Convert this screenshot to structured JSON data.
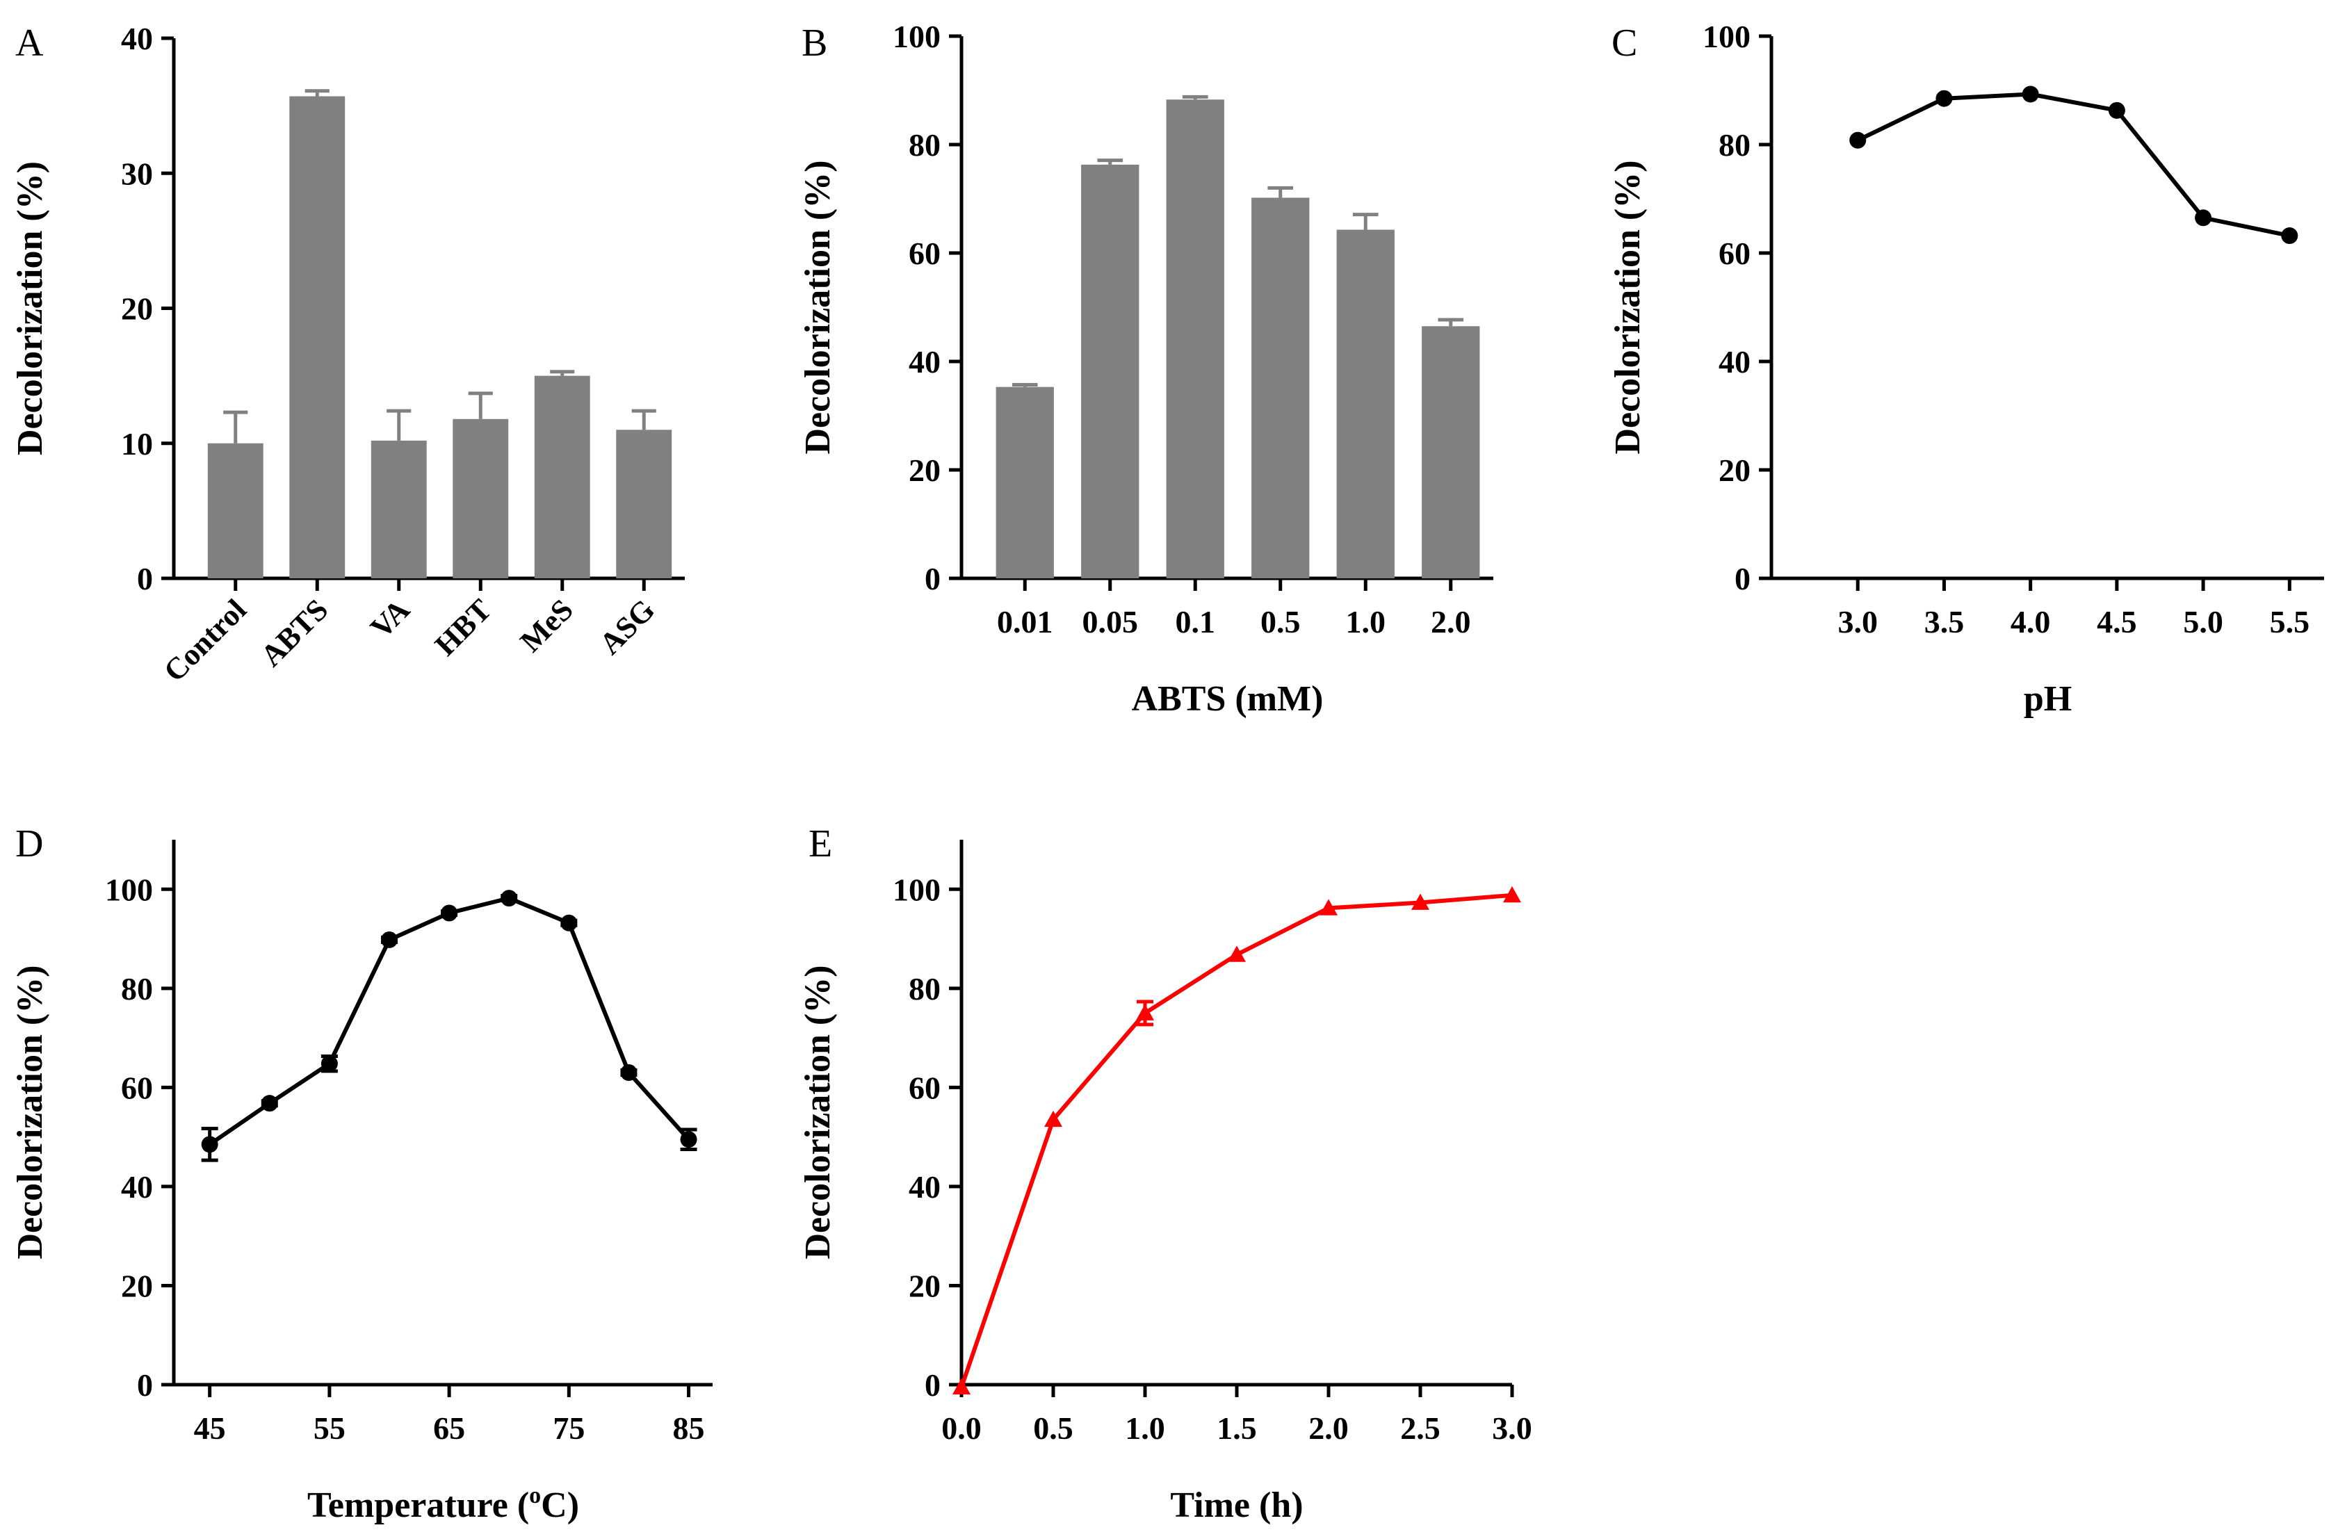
{
  "figure": {
    "colors": {
      "bar": "#808080",
      "line": "#000000",
      "lineE": "#ff0000",
      "axis": "#000000"
    },
    "panels": [
      {
        "letter": "A",
        "chart_data": {
          "type": "bar",
          "categories": [
            "Control",
            "ABTS",
            "VA",
            "HBT",
            "MeS",
            "ASG"
          ],
          "values": [
            10.0,
            35.7,
            10.2,
            11.8,
            15.0,
            11.0
          ],
          "errors": [
            2.3,
            0.4,
            2.2,
            1.9,
            0.3,
            1.4
          ],
          "title": "",
          "xlabel": "",
          "ylabel": "Decolorization (%)",
          "ylim": [
            0,
            40
          ],
          "yticks": [
            0,
            10,
            20,
            30,
            40
          ],
          "grid": false
        }
      },
      {
        "letter": "B",
        "chart_data": {
          "type": "bar",
          "categories": [
            "0.01",
            "0.05",
            "0.1",
            "0.5",
            "1.0",
            "2.0"
          ],
          "values": [
            35.3,
            76.3,
            88.3,
            70.2,
            64.3,
            46.5
          ],
          "errors": [
            0.4,
            0.8,
            0.5,
            1.8,
            2.8,
            1.2
          ],
          "title": "",
          "xlabel": "ABTS (mM)",
          "ylabel": "Decolorization (%)",
          "ylim": [
            0,
            100
          ],
          "yticks": [
            0,
            20,
            40,
            60,
            80,
            100
          ],
          "grid": false
        }
      },
      {
        "letter": "C",
        "chart_data": {
          "type": "line",
          "x": [
            3.0,
            3.5,
            4.0,
            4.5,
            5.0,
            5.5
          ],
          "xticks": [
            "3.0",
            "3.5",
            "4.0",
            "4.5",
            "5.0",
            "5.5"
          ],
          "values": [
            80.8,
            88.5,
            89.3,
            86.3,
            66.5,
            63.2
          ],
          "errors": [
            0,
            0,
            0,
            0,
            0,
            0
          ],
          "marker": "circle",
          "title": "",
          "xlabel": "pH",
          "ylabel": "Decolorization (%)",
          "xlim": [
            2.5,
            5.7
          ],
          "ylim": [
            0,
            100
          ],
          "yticks": [
            0,
            20,
            40,
            60,
            80,
            100
          ],
          "grid": false
        }
      },
      {
        "letter": "D",
        "chart_data": {
          "type": "line",
          "x": [
            45,
            50,
            55,
            60,
            65,
            70,
            75,
            80,
            85
          ],
          "xticks": [
            "45",
            "55",
            "65",
            "75",
            "85"
          ],
          "values": [
            48.5,
            56.8,
            64.8,
            89.8,
            95.2,
            98.2,
            93.2,
            63.0,
            49.5
          ],
          "errors": [
            3.2,
            0.5,
            1.5,
            0.5,
            0.4,
            0.5,
            0.5,
            0.5,
            2.0
          ],
          "marker": "circle",
          "title": "",
          "xlabel": "Temperature (",
          "xlabel_sup": "o",
          "xlabel_tail": "C)",
          "ylabel": "Decolorization (%)",
          "xlim": [
            42,
            87
          ],
          "ylim": [
            0,
            110
          ],
          "yticks": [
            0,
            20,
            40,
            60,
            80,
            100
          ],
          "grid": false
        }
      },
      {
        "letter": "E",
        "chart_data": {
          "type": "line",
          "x": [
            0.0,
            0.5,
            1.0,
            1.5,
            2.0,
            2.5,
            3.0
          ],
          "xticks": [
            "0.0",
            "0.5",
            "1.0",
            "1.5",
            "2.0",
            "2.5",
            "3.0"
          ],
          "values": [
            -0.5,
            53.5,
            75.0,
            86.8,
            96.2,
            97.3,
            98.8
          ],
          "errors": [
            0,
            0,
            2.3,
            0,
            0,
            0,
            0
          ],
          "marker": "triangle",
          "title": "",
          "xlabel": "Time (h)",
          "ylabel": "Decolorization (%)",
          "xlim": [
            0,
            3.0
          ],
          "ylim": [
            0,
            110
          ],
          "yticks": [
            0,
            20,
            40,
            60,
            80,
            100
          ],
          "grid": false
        }
      }
    ]
  }
}
